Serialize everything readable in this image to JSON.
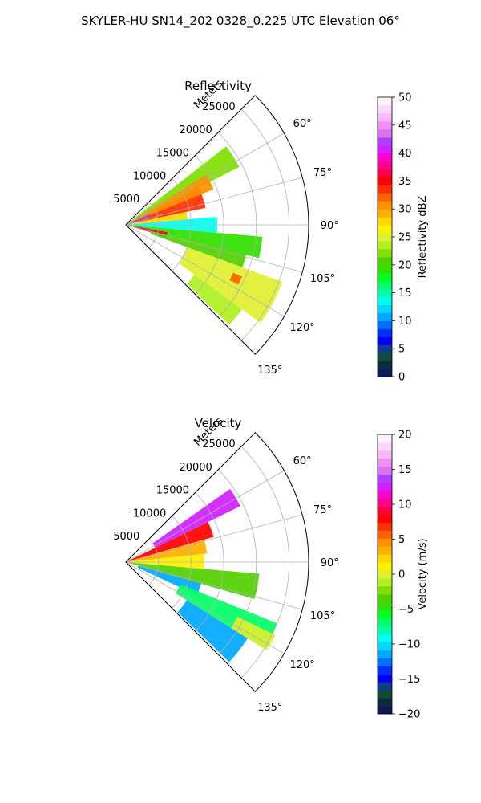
{
  "figure_title": "SKYLER-HU  SN14_202  0328_0.225 UTC Elevation 06°",
  "chart_data": [
    {
      "type": "heatmap",
      "projection": "polar-sector",
      "title": "Reflectivity",
      "radial_axis_label": "Meters",
      "radial_ticks": [
        5000,
        10000,
        15000,
        20000,
        25000
      ],
      "radial_tick_labels": [
        "5000",
        "10000",
        "15000",
        "20000",
        "25000"
      ],
      "radial_range": [
        0,
        28000
      ],
      "angular_ticks": [
        60,
        75,
        90,
        105,
        120,
        135
      ],
      "angular_tick_labels": [
        "60°",
        "75°",
        "90°",
        "105°",
        "120°",
        "135°"
      ],
      "angular_range": [
        45,
        135
      ],
      "grid": true,
      "colorbar": {
        "label": "Reflectivity dBZ",
        "range": [
          0,
          50
        ],
        "ticks": [
          0,
          5,
          10,
          15,
          20,
          25,
          30,
          35,
          40,
          45,
          50
        ],
        "tick_labels": [
          "0",
          "5",
          "10",
          "15",
          "20",
          "25",
          "30",
          "35",
          "40",
          "45",
          "50"
        ],
        "colors": [
          "#0b1a5c",
          "#0d2c3a",
          "#0f4d35",
          "#123a8a",
          "#0000ff",
          "#0030ff",
          "#0070ff",
          "#00a8ff",
          "#00d8ff",
          "#00ffee",
          "#00ffaa",
          "#00ff66",
          "#00ff20",
          "#30e000",
          "#50d000",
          "#80e000",
          "#b0f020",
          "#e0f030",
          "#fff000",
          "#ffd800",
          "#ffb000",
          "#ff9000",
          "#ff6000",
          "#ff3000",
          "#ff0000",
          "#ff0040",
          "#ff0090",
          "#ff00cc",
          "#d020ff",
          "#b040ff",
          "#e070f0",
          "#f090f0",
          "#f8b8f8",
          "#fcd8fc",
          "#fff0ff"
        ]
      },
      "sectors": [
        {
          "az": [
            52,
            63
          ],
          "r": [
            0,
            19500
          ],
          "value": 22
        },
        {
          "az": [
            63,
            78
          ],
          "r": [
            0,
            12500
          ],
          "value": 34
        },
        {
          "az": [
            58,
            68
          ],
          "r": [
            0,
            14500
          ],
          "value": 31
        },
        {
          "az": [
            78,
            85
          ],
          "r": [
            0,
            9500
          ],
          "value": 28
        },
        {
          "az": [
            85,
            95
          ],
          "r": [
            0,
            14000
          ],
          "value": 14
        },
        {
          "az": [
            95,
            104
          ],
          "r": [
            0,
            21000
          ],
          "value": 19
        },
        {
          "az": [
            100,
            107
          ],
          "r": [
            1000,
            6500
          ],
          "value": 36
        },
        {
          "az": [
            104,
            110
          ],
          "r": [
            4000,
            19000
          ],
          "value": 21
        },
        {
          "az": [
            110,
            126
          ],
          "r": [
            10000,
            25500
          ],
          "value": 25
        },
        {
          "az": [
            126,
            134
          ],
          "r": [
            13000,
            22000
          ],
          "value": 23
        },
        {
          "az": [
            114,
            118
          ],
          "r": [
            18000,
            19500
          ],
          "value": 32
        },
        {
          "az": [
            66,
            72
          ],
          "r": [
            0,
            4000
          ],
          "value": 42
        }
      ]
    },
    {
      "type": "heatmap",
      "projection": "polar-sector",
      "title": "Velocity",
      "radial_axis_label": "Meters",
      "radial_ticks": [
        5000,
        10000,
        15000,
        20000,
        25000
      ],
      "radial_tick_labels": [
        "5000",
        "10000",
        "15000",
        "20000",
        "25000"
      ],
      "radial_range": [
        0,
        28000
      ],
      "angular_ticks": [
        60,
        75,
        90,
        105,
        120,
        135
      ],
      "angular_tick_labels": [
        "60°",
        "75°",
        "90°",
        "105°",
        "120°",
        "135°"
      ],
      "angular_range": [
        45,
        135
      ],
      "grid": true,
      "colorbar": {
        "label": "Velocity (m/s)",
        "range": [
          -20,
          20
        ],
        "ticks": [
          -20,
          -15,
          -10,
          -5,
          0,
          5,
          10,
          15,
          20
        ],
        "tick_labels": [
          "−20",
          "−15",
          "−10",
          "−5",
          "0",
          "5",
          "10",
          "15",
          "20"
        ],
        "colors": [
          "#0b1a5c",
          "#0d2c3a",
          "#0f4d35",
          "#123a8a",
          "#0000ff",
          "#0030ff",
          "#0070ff",
          "#00a8ff",
          "#00d8ff",
          "#00ffee",
          "#00ffaa",
          "#00ff66",
          "#00ff20",
          "#30e000",
          "#50d000",
          "#80e000",
          "#b0f020",
          "#e0f030",
          "#fff000",
          "#ffd800",
          "#ffb000",
          "#ff9000",
          "#ff6000",
          "#ff3000",
          "#ff0000",
          "#ff0040",
          "#ff0090",
          "#ff00cc",
          "#d020ff",
          "#b040ff",
          "#e070f0",
          "#f090f0",
          "#f8b8f8",
          "#fcd8fc",
          "#fff0ff"
        ]
      },
      "sectors": [
        {
          "az": [
            55,
            64
          ],
          "r": [
            5000,
            19500
          ],
          "value": 13
        },
        {
          "az": [
            64,
            74
          ],
          "r": [
            0,
            14000
          ],
          "value": 8
        },
        {
          "az": [
            74,
            84
          ],
          "r": [
            0,
            12500
          ],
          "value": 3
        },
        {
          "az": [
            84,
            95
          ],
          "r": [
            0,
            12000
          ],
          "value": 1
        },
        {
          "az": [
            95,
            106
          ],
          "r": [
            0,
            20500
          ],
          "value": -4
        },
        {
          "az": [
            106,
            115
          ],
          "r": [
            2000,
            12000
          ],
          "value": -11
        },
        {
          "az": [
            112,
            122
          ],
          "r": [
            9000,
            25000
          ],
          "value": -7
        },
        {
          "az": [
            122,
            134
          ],
          "r": [
            11000,
            22000
          ],
          "value": -11
        },
        {
          "az": [
            116,
            122
          ],
          "r": [
            19000,
            25500
          ],
          "value": 0
        }
      ]
    }
  ]
}
